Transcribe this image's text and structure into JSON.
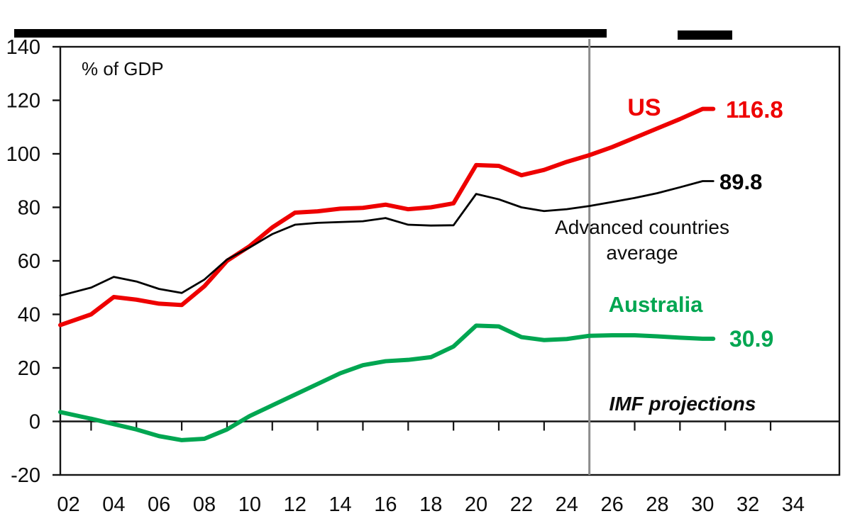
{
  "page": {
    "background": "#ffffff"
  },
  "annotations": {
    "unit_label": "% of GDP",
    "us": {
      "label": "US",
      "value": "116.8"
    },
    "advanced": {
      "label_line1": "Advanced countries",
      "label_line2": "average",
      "value": "89.8"
    },
    "australia": {
      "label": "Australia",
      "value": "30.9"
    },
    "projections": {
      "label": "IMF projections"
    }
  },
  "colors": {
    "us_red": "#ee0000",
    "advanced_black": "#000000",
    "australia_green": "#00a651",
    "projection_gray": "#8c8c8c",
    "axis_black": "#141414"
  },
  "chart_data": {
    "type": "line",
    "title": "",
    "unit_label": "% of GDP",
    "grid": false,
    "legend_position": "inline-annotations",
    "ylim": [
      -20,
      140
    ],
    "ytick_values": [
      140,
      120,
      100,
      80,
      60,
      40,
      20,
      0,
      -20
    ],
    "ytick_labels": [
      "140",
      "120",
      "100",
      "80",
      "60",
      "40",
      "20",
      "0",
      "-20"
    ],
    "xtick_years": [
      2002,
      2004,
      2006,
      2008,
      2010,
      2012,
      2014,
      2016,
      2018,
      2020,
      2022,
      2024,
      2026,
      2028,
      2030,
      2032,
      2034
    ],
    "xtick_labels": [
      "02",
      "04",
      "06",
      "08",
      "10",
      "12",
      "14",
      "16",
      "18",
      "20",
      "22",
      "24",
      "26",
      "28",
      "30",
      "32",
      "34"
    ],
    "minor_tick_years": [
      2003,
      2005,
      2007,
      2009,
      2011,
      2013,
      2015,
      2017,
      2019,
      2021,
      2023,
      2025,
      2027,
      2029,
      2031,
      2033
    ],
    "projection_divider_year": 2025,
    "projection_annotation": "IMF projections",
    "x": [
      2002,
      2003,
      2004,
      2005,
      2006,
      2007,
      2008,
      2009,
      2010,
      2011,
      2012,
      2013,
      2014,
      2015,
      2016,
      2017,
      2018,
      2019,
      2020,
      2021,
      2022,
      2023,
      2024,
      2025,
      2026,
      2027,
      2028,
      2029,
      2030
    ],
    "series": [
      {
        "name": "US",
        "color": "#ee0000",
        "weight": "thick",
        "end_label": "116.8",
        "values": [
          36,
          40,
          46.5,
          45.5,
          44,
          43.5,
          50.5,
          60,
          65.5,
          72.5,
          78,
          78.5,
          79.5,
          79.8,
          81,
          79.3,
          80,
          81.5,
          95.8,
          95.5,
          92,
          94,
          97,
          99.5,
          102.5,
          106,
          109.5,
          113,
          116.8
        ]
      },
      {
        "name": "Advanced countries average",
        "color": "#000000",
        "weight": "thin",
        "end_label": "89.8",
        "values": [
          47,
          50,
          54,
          52.3,
          49.5,
          48,
          53,
          60.5,
          65,
          70,
          73.5,
          74.2,
          74.5,
          74.8,
          76,
          73.5,
          73.2,
          73.3,
          85,
          83,
          80,
          78.6,
          79.3,
          80.5,
          82,
          83.5,
          85.3,
          87.5,
          89.8
        ]
      },
      {
        "name": "Australia",
        "color": "#00a651",
        "weight": "thick",
        "end_label": "30.9",
        "values": [
          3.5,
          1,
          -1,
          -3,
          -5.5,
          -7,
          -6.5,
          -3,
          2,
          6,
          10,
          14,
          18,
          21,
          22.5,
          23,
          24,
          28,
          35.8,
          35.5,
          31.5,
          30.4,
          30.8,
          32,
          32.2,
          32.2,
          31.8,
          31.3,
          30.9
        ]
      }
    ]
  }
}
